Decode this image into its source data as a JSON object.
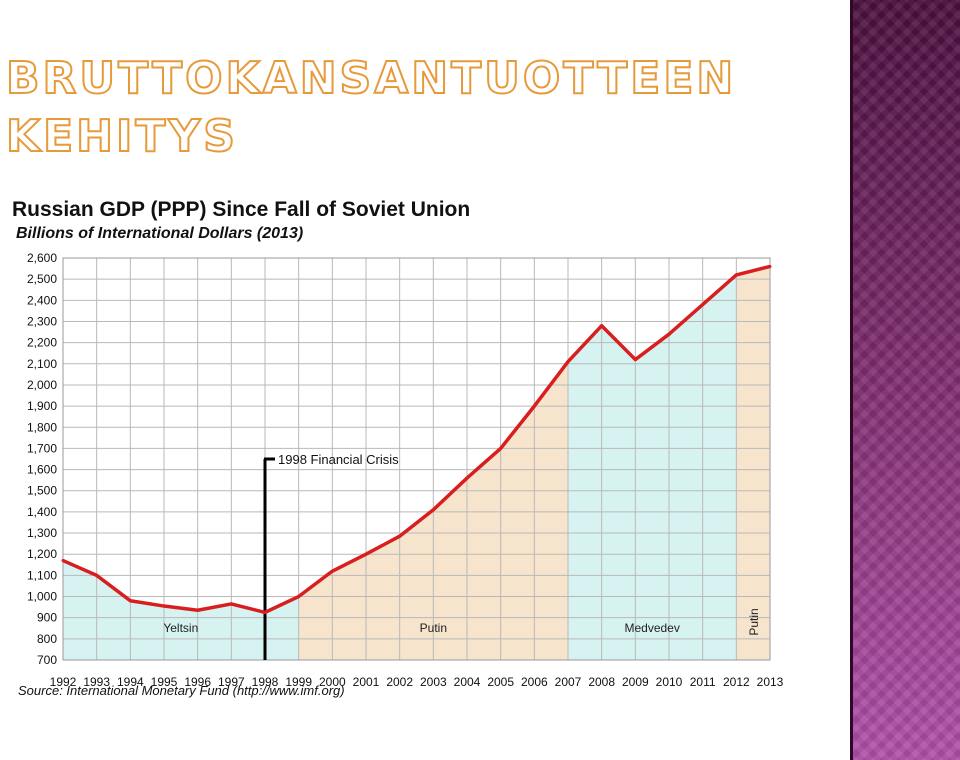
{
  "slide": {
    "title_line1": "BRUTTOKANSANTUOTTEEN",
    "title_line2": "KEHITYS"
  },
  "colors": {
    "yeltsin_medvedev_fill": "#d6f3f2",
    "putin_fill": "#f6e4cd",
    "line": "#d81e1e",
    "title_outline": "#e79a3a",
    "panel_top": "#4a0f3e",
    "panel_bottom": "#b04fa8"
  },
  "chart_data": {
    "type": "area",
    "title": "Russian GDP (PPP) Since Fall of Soviet Union",
    "subtitle": "Billions of International Dollars (2013)",
    "source": "Source: International Monetary Fund (http://www.imf.org)",
    "x": [
      "1992",
      "1993",
      "1994",
      "1995",
      "1996",
      "1997",
      "1998",
      "1999",
      "2000",
      "2001",
      "2002",
      "2003",
      "2004",
      "2005",
      "2006",
      "2007",
      "2008",
      "2009",
      "2010",
      "2011",
      "2012",
      "2013"
    ],
    "values": [
      1170,
      1100,
      980,
      955,
      935,
      965,
      925,
      1000,
      1120,
      1200,
      1285,
      1410,
      1560,
      1700,
      1900,
      2110,
      2280,
      2120,
      2240,
      2380,
      2520,
      2560
    ],
    "ylim": [
      700,
      2600
    ],
    "yticks": [
      "700",
      "800",
      "900",
      "1,000",
      "1,100",
      "1,200",
      "1,300",
      "1,400",
      "1,500",
      "1,600",
      "1,700",
      "1,800",
      "1,900",
      "2,000",
      "2,100",
      "2,200",
      "2,300",
      "2,400",
      "2,500",
      "2,600"
    ],
    "grid": true,
    "eras": [
      {
        "label": "Yeltsin",
        "start": "1992",
        "end": "1999",
        "color": "#d6f3f2"
      },
      {
        "label": "Putin",
        "start": "1999",
        "end": "2007",
        "color": "#f6e4cd"
      },
      {
        "label": "Medvedev",
        "start": "2007",
        "end": "2012",
        "color": "#d6f3f2"
      },
      {
        "label": "Putin",
        "start": "2012",
        "end": "2013",
        "color": "#f6e4cd",
        "vertical": true
      }
    ],
    "annotation": {
      "label": "1998 Financial Crisis",
      "x": "1998",
      "y_top": 1650
    }
  }
}
